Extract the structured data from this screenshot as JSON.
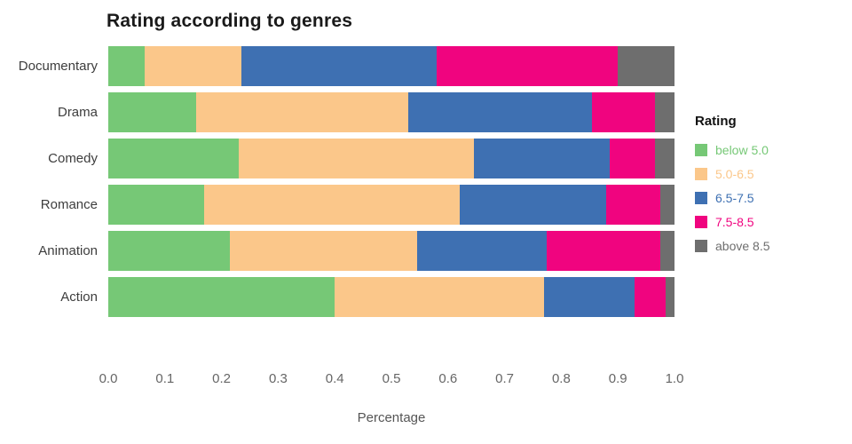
{
  "title": "Rating according to genres",
  "xlabel": "Percentage",
  "legend": {
    "title": "Rating",
    "items": [
      {
        "label": "below 5.0",
        "color": "#76c876"
      },
      {
        "label": "5.0-6.5",
        "color": "#fbc78a"
      },
      {
        "label": "6.5-7.5",
        "color": "#3e70b2"
      },
      {
        "label": "7.5-8.5",
        "color": "#f0047f"
      },
      {
        "label": "above 8.5",
        "color": "#6e6e6e"
      }
    ]
  },
  "chart_data": {
    "type": "bar",
    "orientation": "horizontal",
    "stacked": true,
    "title": "Rating according to genres",
    "xlabel": "Percentage",
    "ylabel": "",
    "xlim": [
      0,
      1
    ],
    "grid": false,
    "legend_position": "right",
    "categories": [
      "Documentary",
      "Drama",
      "Comedy",
      "Romance",
      "Animation",
      "Action"
    ],
    "series": [
      {
        "name": "below 5.0",
        "color": "#76c876",
        "values": [
          0.065,
          0.155,
          0.23,
          0.17,
          0.215,
          0.4
        ]
      },
      {
        "name": "5.0-6.5",
        "color": "#fbc78a",
        "values": [
          0.17,
          0.375,
          0.415,
          0.45,
          0.33,
          0.37
        ]
      },
      {
        "name": "6.5-7.5",
        "color": "#3e70b2",
        "values": [
          0.345,
          0.325,
          0.24,
          0.26,
          0.23,
          0.16
        ]
      },
      {
        "name": "7.5-8.5",
        "color": "#f0047f",
        "values": [
          0.32,
          0.11,
          0.08,
          0.095,
          0.2,
          0.055
        ]
      },
      {
        "name": "above 8.5",
        "color": "#6e6e6e",
        "values": [
          0.1,
          0.035,
          0.035,
          0.025,
          0.025,
          0.015
        ]
      }
    ],
    "xticks": [
      "0.0",
      "0.1",
      "0.2",
      "0.3",
      "0.4",
      "0.5",
      "0.6",
      "0.7",
      "0.8",
      "0.9",
      "1.0"
    ]
  }
}
